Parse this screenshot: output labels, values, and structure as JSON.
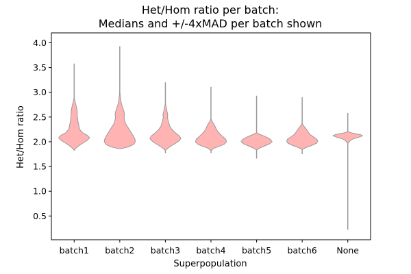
{
  "chart_data": {
    "type": "violin",
    "title_line1": "Het/Hom ratio per batch:",
    "title_line2": "Medians and +/-4xMAD per batch shown",
    "xlabel": "Superpopulation",
    "ylabel": "Het/Hom ratio",
    "ylim": [
      0.02,
      4.2
    ],
    "yticks": [
      "0.5",
      "1.0",
      "1.5",
      "2.0",
      "2.5",
      "3.0",
      "3.5",
      "4.0"
    ],
    "categories": [
      "batch1",
      "batch2",
      "batch3",
      "batch4",
      "batch5",
      "batch6",
      "None"
    ],
    "fill_color": "#ffb3b3",
    "edge_color": "#999999",
    "violins": [
      {
        "name": "batch1",
        "min": 1.82,
        "max": 3.58,
        "range": [
          1.84,
          2.87
        ],
        "profile": [
          [
            1.84,
            0.02
          ],
          [
            1.88,
            0.15
          ],
          [
            1.93,
            0.35
          ],
          [
            1.98,
            0.6
          ],
          [
            2.03,
            0.85
          ],
          [
            2.08,
            1.0
          ],
          [
            2.13,
            0.85
          ],
          [
            2.18,
            0.55
          ],
          [
            2.25,
            0.35
          ],
          [
            2.33,
            0.3
          ],
          [
            2.42,
            0.24
          ],
          [
            2.52,
            0.2
          ],
          [
            2.6,
            0.2
          ],
          [
            2.68,
            0.16
          ],
          [
            2.76,
            0.1
          ],
          [
            2.82,
            0.05
          ],
          [
            2.87,
            0.02
          ]
        ]
      },
      {
        "name": "batch2",
        "min": 1.86,
        "max": 3.93,
        "range": [
          1.86,
          3.0
        ],
        "profile": [
          [
            1.86,
            0.08
          ],
          [
            1.9,
            0.6
          ],
          [
            1.95,
            0.9
          ],
          [
            2.0,
            1.0
          ],
          [
            2.05,
            0.98
          ],
          [
            2.1,
            0.9
          ],
          [
            2.18,
            0.75
          ],
          [
            2.28,
            0.55
          ],
          [
            2.38,
            0.35
          ],
          [
            2.48,
            0.28
          ],
          [
            2.58,
            0.3
          ],
          [
            2.66,
            0.22
          ],
          [
            2.75,
            0.12
          ],
          [
            2.85,
            0.06
          ],
          [
            2.95,
            0.02
          ],
          [
            3.0,
            0.01
          ]
        ]
      },
      {
        "name": "batch3",
        "min": 1.77,
        "max": 3.2,
        "range": [
          1.83,
          2.75
        ],
        "profile": [
          [
            1.83,
            0.02
          ],
          [
            1.88,
            0.2
          ],
          [
            1.93,
            0.45
          ],
          [
            1.98,
            0.72
          ],
          [
            2.03,
            0.92
          ],
          [
            2.07,
            1.0
          ],
          [
            2.12,
            0.9
          ],
          [
            2.18,
            0.65
          ],
          [
            2.25,
            0.42
          ],
          [
            2.32,
            0.28
          ],
          [
            2.4,
            0.2
          ],
          [
            2.48,
            0.14
          ],
          [
            2.56,
            0.15
          ],
          [
            2.62,
            0.1
          ],
          [
            2.7,
            0.05
          ],
          [
            2.75,
            0.02
          ]
        ]
      },
      {
        "name": "batch4",
        "min": 1.77,
        "max": 3.11,
        "range": [
          1.83,
          2.45
        ],
        "profile": [
          [
            1.83,
            0.03
          ],
          [
            1.87,
            0.2
          ],
          [
            1.91,
            0.55
          ],
          [
            1.95,
            0.85
          ],
          [
            2.0,
            1.0
          ],
          [
            2.05,
            0.95
          ],
          [
            2.1,
            0.78
          ],
          [
            2.15,
            0.6
          ],
          [
            2.2,
            0.45
          ],
          [
            2.25,
            0.35
          ],
          [
            2.3,
            0.28
          ],
          [
            2.35,
            0.2
          ],
          [
            2.4,
            0.1
          ],
          [
            2.45,
            0.02
          ]
        ]
      },
      {
        "name": "batch5",
        "min": 1.66,
        "max": 2.93,
        "range": [
          1.84,
          2.18
        ],
        "profile": [
          [
            1.84,
            0.03
          ],
          [
            1.88,
            0.25
          ],
          [
            1.92,
            0.55
          ],
          [
            1.96,
            0.85
          ],
          [
            2.0,
            1.0
          ],
          [
            2.04,
            0.92
          ],
          [
            2.08,
            0.72
          ],
          [
            2.12,
            0.45
          ],
          [
            2.15,
            0.2
          ],
          [
            2.18,
            0.03
          ]
        ]
      },
      {
        "name": "batch6",
        "min": 1.75,
        "max": 2.9,
        "range": [
          1.85,
          2.36
        ],
        "profile": [
          [
            1.85,
            0.03
          ],
          [
            1.89,
            0.3
          ],
          [
            1.93,
            0.65
          ],
          [
            1.97,
            0.92
          ],
          [
            2.01,
            1.0
          ],
          [
            2.05,
            0.95
          ],
          [
            2.1,
            0.72
          ],
          [
            2.15,
            0.5
          ],
          [
            2.2,
            0.38
          ],
          [
            2.25,
            0.28
          ],
          [
            2.3,
            0.15
          ],
          [
            2.36,
            0.02
          ]
        ]
      },
      {
        "name": "None",
        "min": 0.22,
        "max": 2.58,
        "range": [
          1.98,
          2.2
        ],
        "profile": [
          [
            1.98,
            0.03
          ],
          [
            2.02,
            0.15
          ],
          [
            2.06,
            0.35
          ],
          [
            2.09,
            0.7
          ],
          [
            2.12,
            0.95
          ],
          [
            2.14,
            0.85
          ],
          [
            2.16,
            0.55
          ],
          [
            2.18,
            0.25
          ],
          [
            2.2,
            0.03
          ]
        ]
      }
    ]
  }
}
